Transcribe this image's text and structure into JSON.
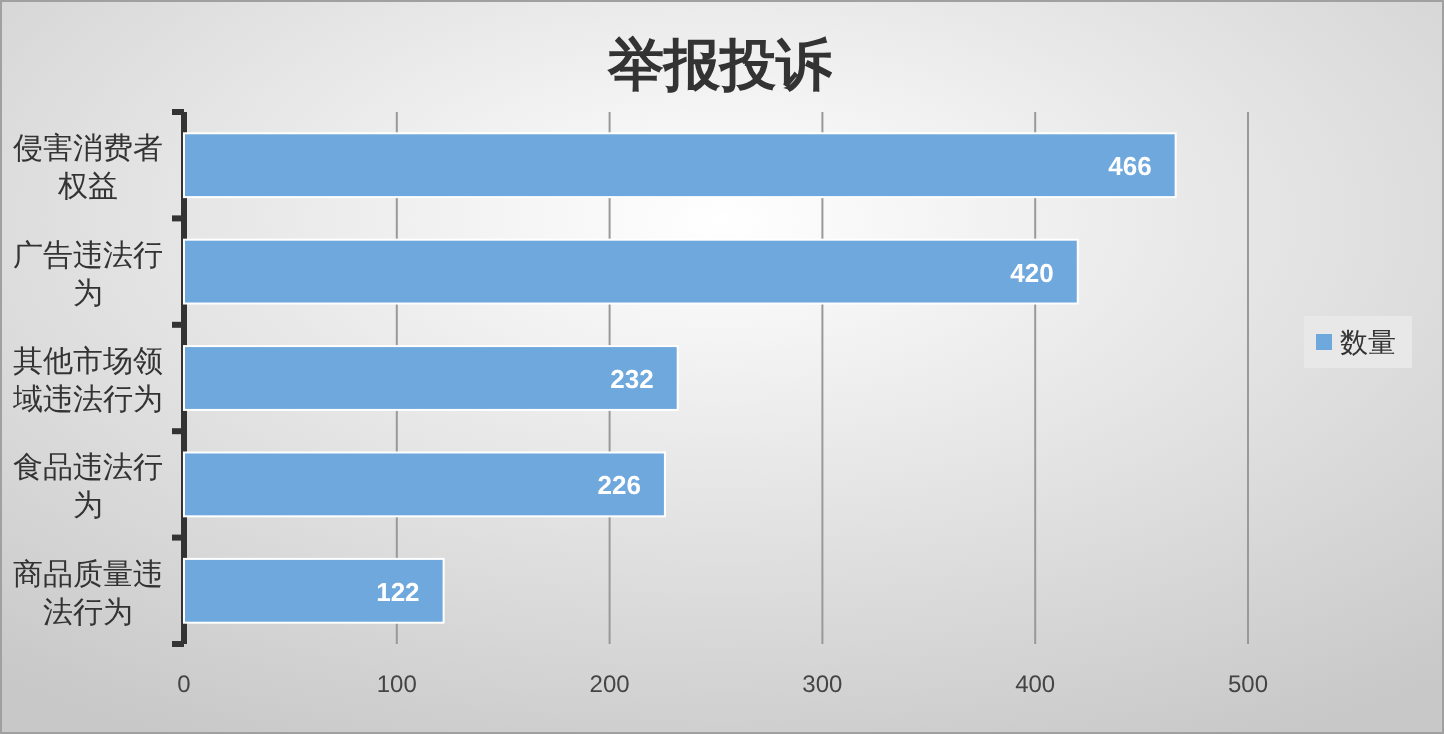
{
  "chart_data": {
    "type": "bar",
    "orientation": "horizontal",
    "title": "举报投诉",
    "categories": [
      "侵害消费者权益",
      "广告违法行为",
      "其他市场领域违法行为",
      "食品违法行为",
      "商品质量违法行为"
    ],
    "series": [
      {
        "name": "数量",
        "color": "#6fa8dc",
        "values": [
          466,
          420,
          232,
          226,
          122
        ]
      }
    ],
    "xlim": [
      0,
      500
    ],
    "xticks": [
      0,
      100,
      200,
      300,
      400,
      500
    ],
    "grid": "x",
    "legend": "right",
    "data_labels": true
  }
}
